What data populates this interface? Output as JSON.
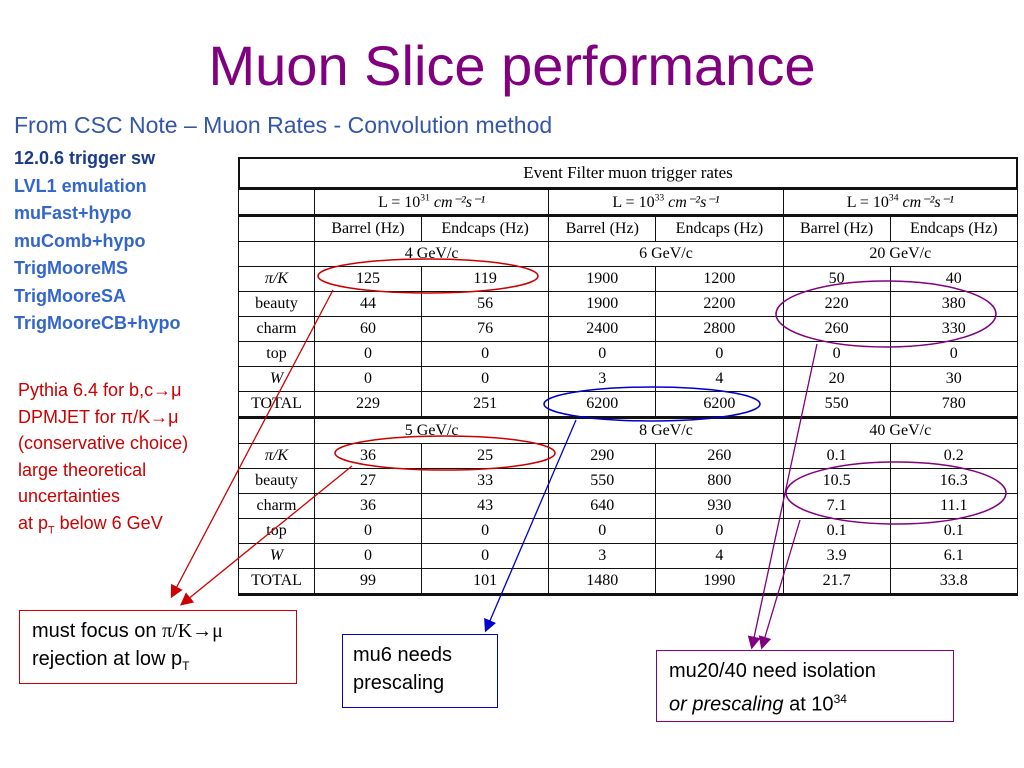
{
  "slide": {
    "title": "Muon Slice performance",
    "subtitle": "From CSC Note – Muon Rates - Convolution method",
    "sw_lines": [
      "12.0.6 trigger sw",
      "LVL1 emulation",
      "muFast+hypo",
      "muComb+hypo",
      "TrigMooreMS",
      "TrigMooreSA",
      "TrigMooreCB+hypo"
    ],
    "pythia_lines": [
      "Pythia 6.4 for b,c→μ",
      "DPMJET for π/K→μ",
      "(conservative choice)",
      "large theoretical",
      "uncertainties"
    ],
    "pythia_pt_prefix": "at p",
    "pythia_pt_sub": "T",
    "pythia_pt_suffix": " below 6 GeV",
    "box_red_line1": "must focus on ",
    "box_red_symbol": "π/K→μ",
    "box_red_line2_prefix": "rejection at low p",
    "box_red_line2_sub": "T",
    "box_blue_line1": "mu6 needs",
    "box_blue_line2": "prescaling",
    "box_purple_line1": "mu20/40 need isolation",
    "box_purple_italic": "or prescaling",
    "box_purple_at": " at 10",
    "box_purple_sup": "34",
    "colors": {
      "title": "#800080",
      "subtitle": "#3355aa",
      "red": "#cc0000",
      "blue": "#0000cc",
      "purple": "#800080"
    }
  },
  "table": {
    "caption": "Event Filter muon trigger rates",
    "lumi": [
      {
        "prefix": "L = 10",
        "exp": "31",
        "unit": "cm⁻²s⁻¹"
      },
      {
        "prefix": "L = 10",
        "exp": "33",
        "unit": "cm⁻²s⁻¹"
      },
      {
        "prefix": "L = 10",
        "exp": "34",
        "unit": "cm⁻²s⁻¹"
      }
    ],
    "subheaders": [
      "Barrel (Hz)",
      "Endcaps (Hz)",
      "Barrel (Hz)",
      "Endcaps (Hz)",
      "Barrel (Hz)",
      "Endcaps (Hz)"
    ],
    "thresholds_top": [
      "4 GeV/c",
      "6 GeV/c",
      "20 GeV/c"
    ],
    "thresholds_bottom": [
      "5 GeV/c",
      "8 GeV/c",
      "40 GeV/c"
    ],
    "rows_top": [
      {
        "label": "π/K",
        "vals": [
          "125",
          "119",
          "1900",
          "1200",
          "50",
          "40"
        ]
      },
      {
        "label": "beauty",
        "vals": [
          "44",
          "56",
          "1900",
          "2200",
          "220",
          "380"
        ]
      },
      {
        "label": "charm",
        "vals": [
          "60",
          "76",
          "2400",
          "2800",
          "260",
          "330"
        ]
      },
      {
        "label": "top",
        "vals": [
          "0",
          "0",
          "0",
          "0",
          "0",
          "0"
        ]
      },
      {
        "label": "W",
        "vals": [
          "0",
          "0",
          "3",
          "4",
          "20",
          "30"
        ]
      },
      {
        "label": "TOTAL",
        "vals": [
          "229",
          "251",
          "6200",
          "6200",
          "550",
          "780"
        ]
      }
    ],
    "rows_bottom": [
      {
        "label": "π/K",
        "vals": [
          "36",
          "25",
          "290",
          "260",
          "0.1",
          "0.2"
        ]
      },
      {
        "label": "beauty",
        "vals": [
          "27",
          "33",
          "550",
          "800",
          "10.5",
          "16.3"
        ]
      },
      {
        "label": "charm",
        "vals": [
          "36",
          "43",
          "640",
          "930",
          "7.1",
          "11.1"
        ]
      },
      {
        "label": "top",
        "vals": [
          "0",
          "0",
          "0",
          "0",
          "0.1",
          "0.1"
        ]
      },
      {
        "label": "W",
        "vals": [
          "0",
          "0",
          "3",
          "4",
          "3.9",
          "6.1"
        ]
      },
      {
        "label": "TOTAL",
        "vals": [
          "99",
          "101",
          "1480",
          "1990",
          "21.7",
          "33.8"
        ]
      }
    ]
  }
}
